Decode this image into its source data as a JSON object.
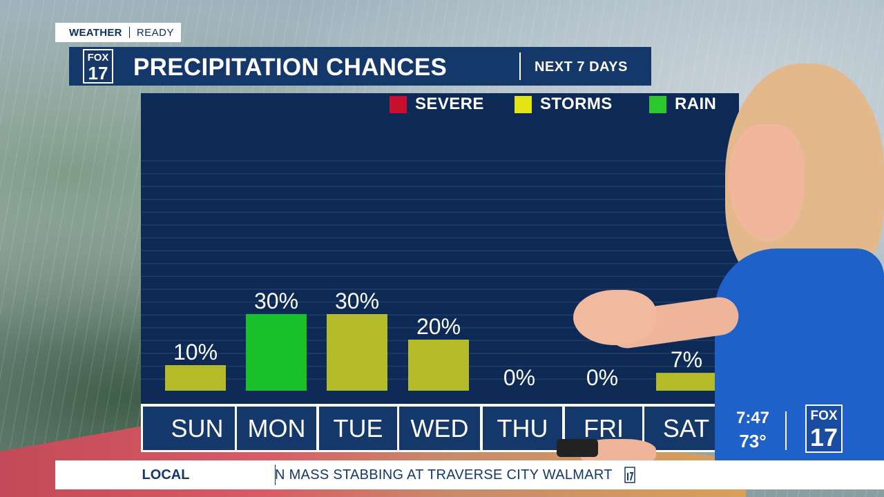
{
  "tag": {
    "left": "WEATHER",
    "right": "READY"
  },
  "header": {
    "title": "PRECIPITATION CHANCES",
    "subtitle": "NEXT 7 DAYS",
    "logo_top": "FOX",
    "logo_bottom": "17"
  },
  "legend": [
    {
      "label": "SEVERE",
      "color": "#c8102e"
    },
    {
      "label": "STORMS",
      "color": "#e3e316"
    },
    {
      "label": "RAIN",
      "color": "#2ec72e"
    }
  ],
  "chart_data": {
    "type": "bar",
    "categories": [
      "SUN",
      "MON",
      "TUE",
      "WED",
      "THU",
      "FRI",
      "SAT"
    ],
    "values": [
      10,
      30,
      30,
      20,
      0,
      0,
      7
    ],
    "value_labels": [
      "10%",
      "30%",
      "30%",
      "20%",
      "0%",
      "0%",
      "7%"
    ],
    "bar_types": [
      "STORMS",
      "RAIN",
      "STORMS",
      "STORMS",
      "STORMS",
      "STORMS",
      "STORMS"
    ],
    "bar_colors": [
      "#b5bb28",
      "#18c02a",
      "#b5bb28",
      "#b5bb28",
      "#b5bb28",
      "#b5bb28",
      "#b5bb28"
    ],
    "ylim": [
      0,
      100
    ],
    "grid": true,
    "legend_position": "top-right"
  },
  "status": {
    "time": "7:47",
    "temp": "73°",
    "logo_top": "FOX",
    "logo_bottom": "17"
  },
  "ticker": {
    "label": "LOCAL",
    "text": "N MASS STABBING AT TRAVERSE CITY WALMART"
  }
}
